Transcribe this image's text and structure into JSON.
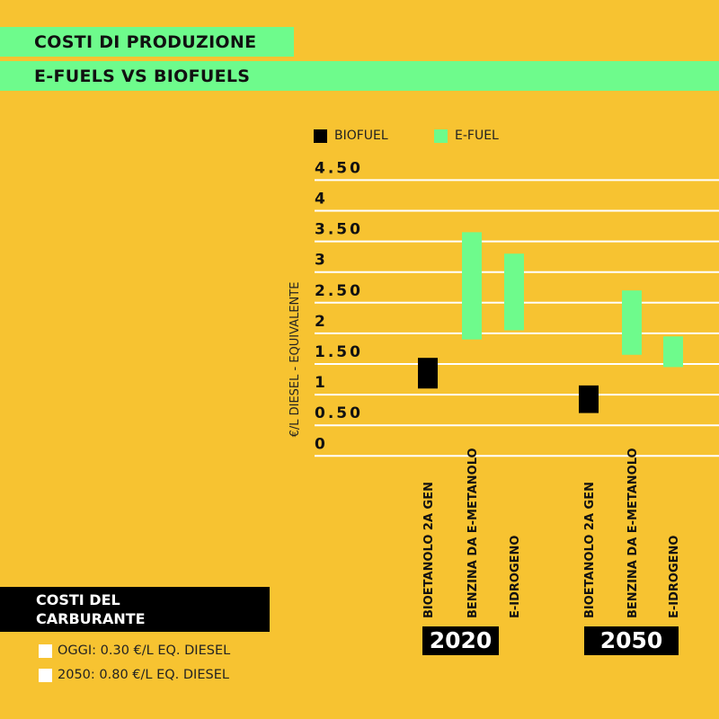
{
  "header": {
    "title": "COSTI DI PRODUZIONE",
    "subtitle": "E-FUELS VS BIOFUELS"
  },
  "colors": {
    "background": "#F7C331",
    "biofuel": "#000000",
    "efuel": "#6EFB8C",
    "grid": "#FFFFFF"
  },
  "chart_data": {
    "type": "floating-bar",
    "ylabel": "€/L DIESEL - EQUIVALENTE",
    "ylim": [
      0,
      4.5
    ],
    "yticks": [
      "0",
      "0.50",
      "1",
      "1.50",
      "2",
      "2.50",
      "3",
      "3.50",
      "4",
      "4.50"
    ],
    "grid": true,
    "legend": {
      "placement": "top",
      "items": [
        {
          "name": "BIOFUEL",
          "color": "#000000"
        },
        {
          "name": "E-FUEL",
          "color": "#6EFB8C"
        }
      ]
    },
    "groups": [
      {
        "label": "2020",
        "bars": [
          {
            "category": "BIOETANOLO 2A GEN",
            "series": "BIOFUEL",
            "low": 1.1,
            "high": 1.6
          },
          {
            "category": "BENZINA DA E-METANOLO",
            "series": "E-FUEL",
            "low": 1.9,
            "high": 3.65
          },
          {
            "category": "E-IDROGENO",
            "series": "E-FUEL",
            "low": 2.05,
            "high": 3.3
          }
        ]
      },
      {
        "label": "2050",
        "bars": [
          {
            "category": "BIOETANOLO 2A GEN",
            "series": "BIOFUEL",
            "low": 0.7,
            "high": 1.15
          },
          {
            "category": "BENZINA DA E-METANOLO",
            "series": "E-FUEL",
            "low": 1.65,
            "high": 2.7
          },
          {
            "category": "E-IDROGENO",
            "series": "E-FUEL",
            "low": 1.45,
            "high": 1.95
          }
        ]
      }
    ]
  },
  "fuel_costs": {
    "title_line1": "COSTI DEL",
    "title_line2": "CARBURANTE",
    "items": [
      "OGGI: 0.30 €/L EQ. DIESEL",
      "2050: 0.80 €/L EQ. DIESEL"
    ]
  }
}
